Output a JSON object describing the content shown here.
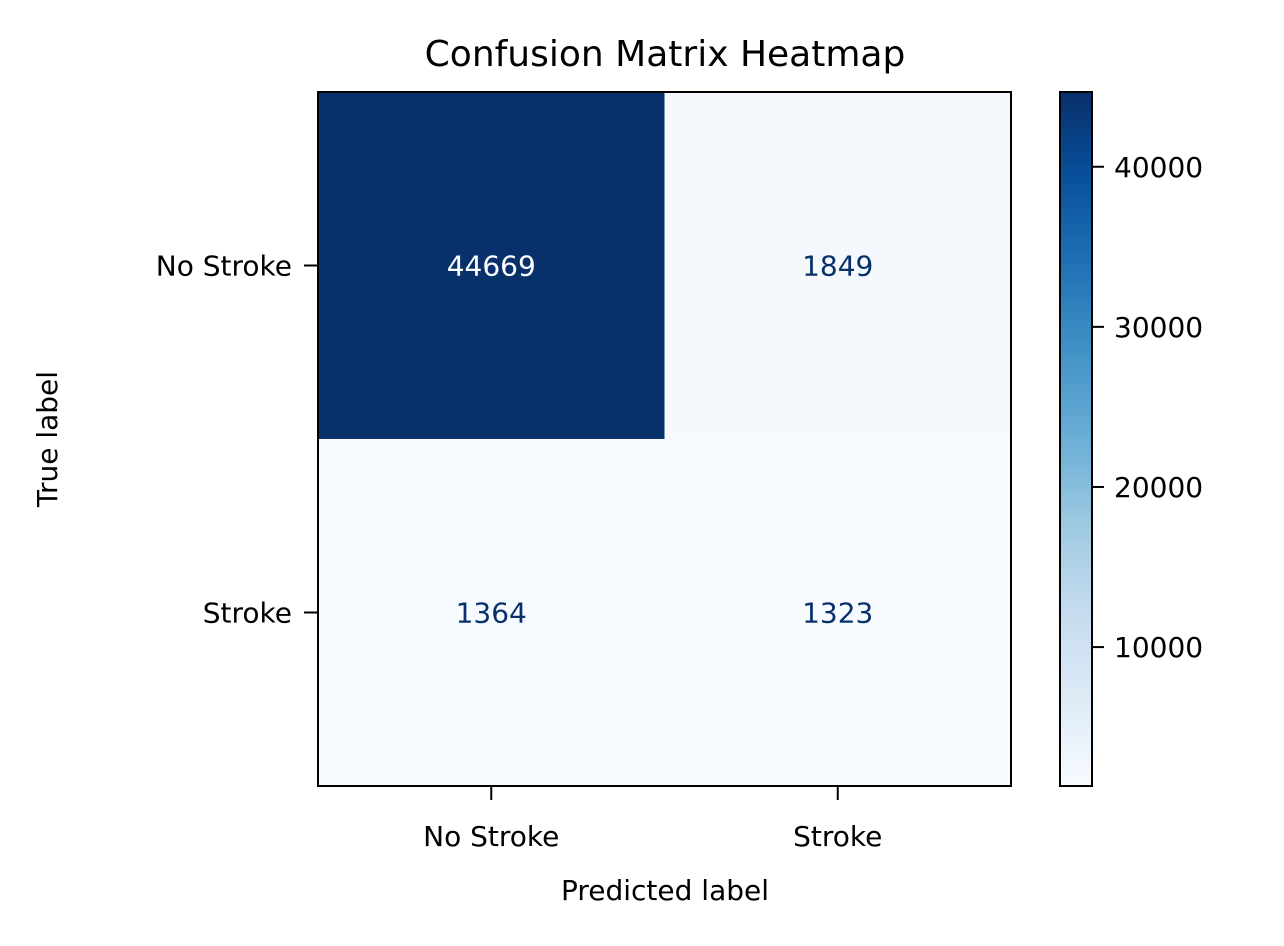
{
  "chart_data": {
    "type": "heatmap",
    "title": "Confusion Matrix Heatmap",
    "xlabel": "Predicted label",
    "ylabel": "True label",
    "x_categories": [
      "No Stroke",
      "Stroke"
    ],
    "y_categories": [
      "No Stroke",
      "Stroke"
    ],
    "values": [
      [
        44669,
        1849
      ],
      [
        1364,
        1323
      ]
    ],
    "colormap": "Blues",
    "colorbar": {
      "range": [
        1323,
        44669
      ],
      "ticks": [
        10000,
        20000,
        30000,
        40000
      ],
      "tick_labels": [
        "10000",
        "20000",
        "30000",
        "40000"
      ]
    },
    "grid": false,
    "colors": {
      "low": "#f7fbff",
      "high": "#08306b",
      "text_on_dark": "#ffffff",
      "text_on_light": "#08306b"
    }
  }
}
